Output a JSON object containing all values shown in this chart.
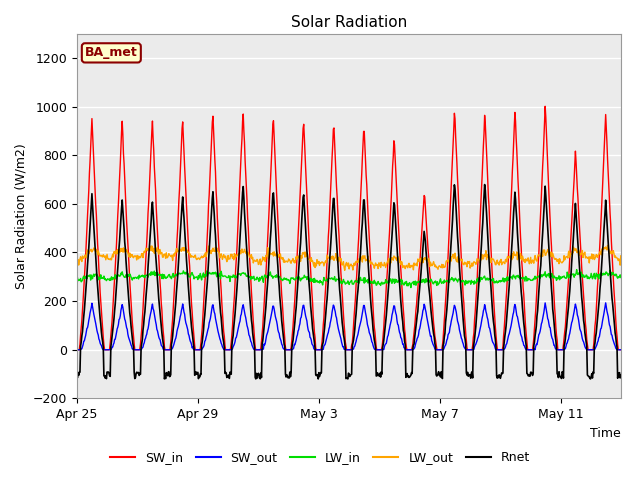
{
  "title": "Solar Radiation",
  "ylabel": "Solar Radiation (W/m2)",
  "xlabel": "Time",
  "ylim": [
    -200,
    1300
  ],
  "yticks": [
    -200,
    0,
    200,
    400,
    600,
    800,
    1000,
    1200
  ],
  "plot_bg_color": "#f0f0f0",
  "fig_bg": "#ffffff",
  "series": {
    "SW_in": {
      "color": "#ff0000",
      "lw": 1.0
    },
    "SW_out": {
      "color": "#0000ff",
      "lw": 1.0
    },
    "LW_in": {
      "color": "#00dd00",
      "lw": 1.0
    },
    "LW_out": {
      "color": "#ffa500",
      "lw": 1.0
    },
    "Rnet": {
      "color": "#000000",
      "lw": 1.2
    }
  },
  "x_tick_labels": [
    "Apr 25",
    "Apr 29",
    "May 3",
    "May 7",
    "May 11"
  ],
  "station_label": "BA_met",
  "station_label_facecolor": "#ffffcc",
  "station_label_edgecolor": "#8b0000",
  "n_days": 18,
  "points_per_day": 48
}
